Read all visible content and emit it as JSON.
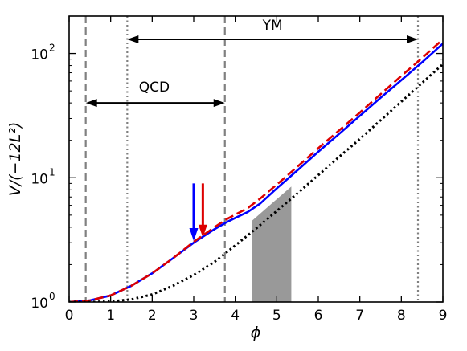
{
  "chart_data": {
    "type": "line",
    "title": "",
    "xlabel": "ϕ",
    "ylabel": "V/(−12L²)",
    "xlim": [
      0,
      9
    ],
    "ylim": [
      1,
      200
    ],
    "y_scale": "log",
    "grid": false,
    "x_ticks": [
      "0",
      "1",
      "2",
      "3",
      "4",
      "5",
      "6",
      "7",
      "8",
      "9"
    ],
    "y_ticks": [
      {
        "value": 1,
        "base": "10",
        "exp": "0"
      },
      {
        "value": 10,
        "base": "10",
        "exp": "1"
      },
      {
        "value": 100,
        "base": "10",
        "exp": "2"
      }
    ],
    "series": [
      {
        "color": "#0000ff",
        "style": "solid",
        "x": [
          0,
          0.5,
          1,
          1.5,
          2,
          2.5,
          3,
          3.5,
          3.8,
          4,
          4.3,
          4.6,
          5,
          5.5,
          6,
          6.5,
          7,
          7.5,
          8,
          8.5,
          9
        ],
        "y": [
          1.0,
          1.03,
          1.13,
          1.35,
          1.7,
          2.25,
          3.0,
          3.85,
          4.4,
          4.75,
          5.3,
          6.2,
          8.2,
          11.5,
          16.2,
          22.5,
          31.5,
          44,
          61,
          85,
          120
        ]
      },
      {
        "color": "#dd0000",
        "style": "dashed",
        "x": [
          0,
          0.5,
          1,
          1.5,
          2,
          2.5,
          3,
          3.5,
          3.8,
          4,
          4.3,
          4.6,
          5,
          5.5,
          6,
          6.5,
          7,
          7.5,
          8,
          8.5,
          9
        ],
        "y": [
          1.0,
          1.03,
          1.13,
          1.35,
          1.7,
          2.25,
          3.05,
          4.0,
          4.65,
          5.05,
          5.7,
          6.8,
          8.8,
          12.3,
          17.3,
          24,
          33.5,
          47,
          66,
          92,
          130
        ]
      },
      {
        "color": "#000000",
        "style": "dotted",
        "x": [
          0,
          0.5,
          1,
          1.5,
          2,
          2.5,
          3,
          3.5,
          4,
          4.5,
          5,
          5.5,
          6,
          6.5,
          7,
          7.5,
          8,
          8.5,
          9
        ],
        "y": [
          1.0,
          1.0,
          1.01,
          1.05,
          1.15,
          1.35,
          1.65,
          2.1,
          2.85,
          3.9,
          5.4,
          7.5,
          10.5,
          14.7,
          20.5,
          29,
          41,
          58,
          82
        ]
      }
    ],
    "vlines": [
      {
        "x": 0.4,
        "style": "dashed",
        "color": "#808080"
      },
      {
        "x": 3.75,
        "style": "dashed",
        "color": "#808080"
      },
      {
        "x": 1.4,
        "style": "dotted",
        "color": "#808080"
      },
      {
        "x": 8.4,
        "style": "dotted",
        "color": "#808080"
      }
    ],
    "shaded_region": {
      "color": "#999999",
      "polygon": [
        [
          4.4,
          1
        ],
        [
          4.4,
          4.5
        ],
        [
          5.35,
          8.5
        ],
        [
          5.35,
          1
        ]
      ]
    },
    "annotations": [
      {
        "text": "QCD",
        "x_start": 0.4,
        "x_end": 3.75,
        "y": 40,
        "label_x": 2.05,
        "label_y": 54
      },
      {
        "text": "YM",
        "x_start": 1.4,
        "x_end": 8.4,
        "y": 130,
        "label_x": 4.9,
        "label_y": 170
      }
    ],
    "markers": [
      {
        "color": "#0000ff",
        "x": 3.0,
        "y_from": 9.0,
        "y_to": 3.1
      },
      {
        "color": "#dd0000",
        "x": 3.22,
        "y_from": 9.0,
        "y_to": 3.3
      }
    ]
  }
}
